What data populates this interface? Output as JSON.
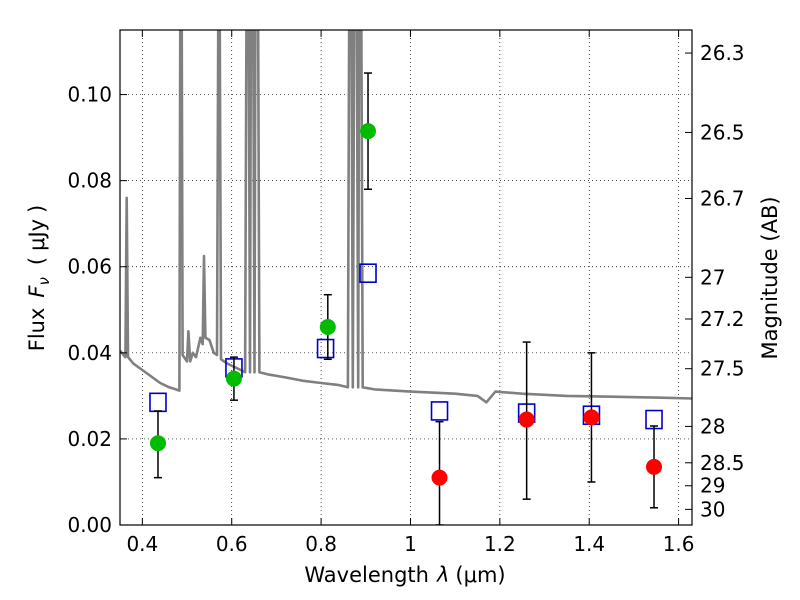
{
  "chart_data": {
    "type": "scatter",
    "xlabel_text": "Wavelength",
    "xlabel_symbol": "λ",
    "xlabel_unit": "(μm)",
    "ylabel_text": "Flux",
    "ylabel_symbol": "F",
    "ylabel_symbol_sub": "ν",
    "ylabel_unit_open": "(",
    "ylabel_unit": "μJy",
    "ylabel_unit_close": ")",
    "y2label": "Magnitude (AB)",
    "xlim": [
      0.35,
      1.63
    ],
    "ylim": [
      0.0,
      0.115
    ],
    "xticks": [
      {
        "v": 0.4,
        "label": "0.4"
      },
      {
        "v": 0.6,
        "label": "0.6"
      },
      {
        "v": 0.8,
        "label": "0.8"
      },
      {
        "v": 1.0,
        "label": "1"
      },
      {
        "v": 1.2,
        "label": "1.2"
      },
      {
        "v": 1.4,
        "label": "1.4"
      },
      {
        "v": 1.6,
        "label": "1.6"
      }
    ],
    "yticks": [
      {
        "v": 0.0,
        "label": "0.00"
      },
      {
        "v": 0.02,
        "label": "0.02"
      },
      {
        "v": 0.04,
        "label": "0.04"
      },
      {
        "v": 0.06,
        "label": "0.06"
      },
      {
        "v": 0.08,
        "label": "0.08"
      },
      {
        "v": 0.1,
        "label": "0.10"
      }
    ],
    "y2ticks": [
      {
        "label": "26.3"
      },
      {
        "label": "26.5"
      },
      {
        "label": "26.7"
      },
      {
        "label": "27"
      },
      {
        "label": "27.2"
      },
      {
        "label": "27.5"
      },
      {
        "label": "28"
      },
      {
        "label": "28.5"
      },
      {
        "label": "29"
      },
      {
        "label": "30"
      }
    ],
    "grid": true,
    "colors": {
      "model": "#808080",
      "green_points": "#00bb00",
      "red_points": "#ff0000",
      "model_squares": "#0000cc",
      "errorbars": "#000000"
    },
    "model_spectrum": [
      [
        0.35,
        0.0405
      ],
      [
        0.362,
        0.039
      ],
      [
        0.365,
        0.076
      ],
      [
        0.368,
        0.039
      ],
      [
        0.38,
        0.0375
      ],
      [
        0.4,
        0.036
      ],
      [
        0.42,
        0.0345
      ],
      [
        0.44,
        0.033
      ],
      [
        0.46,
        0.032
      ],
      [
        0.475,
        0.0315
      ],
      [
        0.483,
        0.0312
      ],
      [
        0.485,
        0.12
      ],
      [
        0.488,
        0.12
      ],
      [
        0.49,
        0.0395
      ],
      [
        0.5,
        0.038
      ],
      [
        0.503,
        0.045
      ],
      [
        0.507,
        0.038
      ],
      [
        0.513,
        0.04
      ],
      [
        0.52,
        0.039
      ],
      [
        0.53,
        0.0435
      ],
      [
        0.535,
        0.042
      ],
      [
        0.538,
        0.0625
      ],
      [
        0.541,
        0.0435
      ],
      [
        0.55,
        0.043
      ],
      [
        0.56,
        0.04
      ],
      [
        0.567,
        0.0395
      ],
      [
        0.57,
        0.12
      ],
      [
        0.573,
        0.12
      ],
      [
        0.576,
        0.0385
      ],
      [
        0.59,
        0.0375
      ],
      [
        0.6,
        0.037
      ],
      [
        0.62,
        0.036
      ],
      [
        0.63,
        0.0355
      ],
      [
        0.633,
        0.12
      ],
      [
        0.638,
        0.12
      ],
      [
        0.641,
        0.0355
      ],
      [
        0.643,
        0.12
      ],
      [
        0.648,
        0.12
      ],
      [
        0.651,
        0.0355
      ],
      [
        0.653,
        0.12
      ],
      [
        0.659,
        0.12
      ],
      [
        0.662,
        0.0355
      ],
      [
        0.68,
        0.035
      ],
      [
        0.72,
        0.0343
      ],
      [
        0.76,
        0.0335
      ],
      [
        0.8,
        0.033
      ],
      [
        0.84,
        0.0325
      ],
      [
        0.86,
        0.032
      ],
      [
        0.863,
        0.12
      ],
      [
        0.868,
        0.12
      ],
      [
        0.871,
        0.032
      ],
      [
        0.874,
        0.12
      ],
      [
        0.88,
        0.12
      ],
      [
        0.883,
        0.032
      ],
      [
        0.885,
        0.12
      ],
      [
        0.89,
        0.12
      ],
      [
        0.893,
        0.032
      ],
      [
        0.92,
        0.0315
      ],
      [
        1.0,
        0.031
      ],
      [
        1.1,
        0.0305
      ],
      [
        1.15,
        0.03
      ],
      [
        1.17,
        0.0285
      ],
      [
        1.19,
        0.031
      ],
      [
        1.25,
        0.0305
      ],
      [
        1.35,
        0.03
      ],
      [
        1.45,
        0.0298
      ],
      [
        1.55,
        0.0296
      ],
      [
        1.63,
        0.0294
      ]
    ],
    "series": [
      {
        "marker": "circle",
        "color": "#00bb00",
        "points": [
          {
            "x": 0.435,
            "y": 0.019,
            "err_lo": 0.011,
            "err_hi": 0.0265
          },
          {
            "x": 0.605,
            "y": 0.034,
            "err_lo": 0.029,
            "err_hi": 0.039
          },
          {
            "x": 0.815,
            "y": 0.046,
            "err_lo": 0.0385,
            "err_hi": 0.0535
          },
          {
            "x": 0.905,
            "y": 0.0915,
            "err_lo": 0.078,
            "err_hi": 0.105
          }
        ]
      },
      {
        "marker": "circle",
        "color": "#ff0000",
        "points": [
          {
            "x": 1.065,
            "y": 0.011,
            "err_lo": 0.0,
            "err_hi": 0.024
          },
          {
            "x": 1.26,
            "y": 0.0245,
            "err_lo": 0.006,
            "err_hi": 0.0425
          },
          {
            "x": 1.405,
            "y": 0.025,
            "err_lo": 0.01,
            "err_hi": 0.04
          },
          {
            "x": 1.545,
            "y": 0.0135,
            "err_lo": 0.004,
            "err_hi": 0.023
          }
        ]
      },
      {
        "marker": "open-square",
        "color": "#0000cc",
        "points": [
          {
            "x": 0.435,
            "y": 0.0285
          },
          {
            "x": 0.605,
            "y": 0.0365
          },
          {
            "x": 0.81,
            "y": 0.041
          },
          {
            "x": 0.905,
            "y": 0.0585
          },
          {
            "x": 1.065,
            "y": 0.0265
          },
          {
            "x": 1.26,
            "y": 0.026
          },
          {
            "x": 1.405,
            "y": 0.0255
          },
          {
            "x": 1.545,
            "y": 0.0245
          }
        ]
      }
    ]
  }
}
